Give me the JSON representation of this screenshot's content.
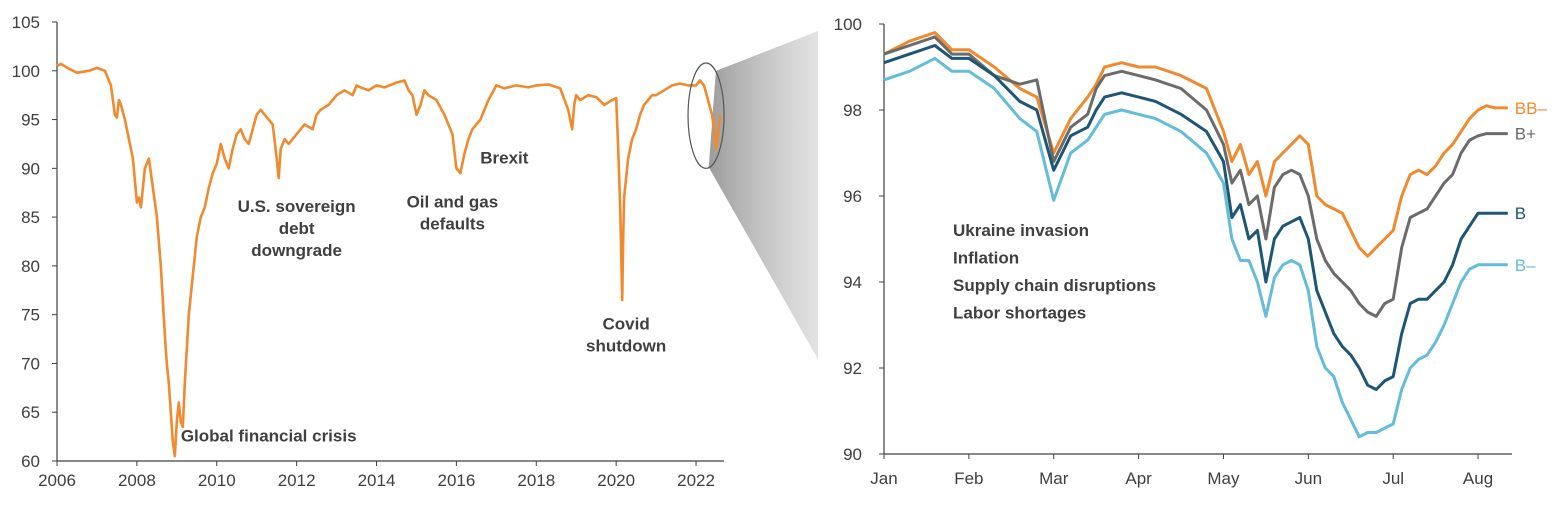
{
  "colors": {
    "orange": "#EF8A2E",
    "gray": "#6B6B6B",
    "navy": "#1E5673",
    "lightblue": "#63BCD8",
    "axis": "#404040",
    "annotation": "#404040"
  },
  "chart_data": [
    {
      "type": "line",
      "title": "",
      "xlabel": "",
      "ylabel": "",
      "xlim": [
        2006,
        2022.7
      ],
      "ylim": [
        60,
        105
      ],
      "grid": false,
      "x_ticks": [
        {
          "value": 2006,
          "label": "2006"
        },
        {
          "value": 2008,
          "label": "2008"
        },
        {
          "value": 2010,
          "label": "2010"
        },
        {
          "value": 2012,
          "label": "2012"
        },
        {
          "value": 2014,
          "label": "2014"
        },
        {
          "value": 2016,
          "label": "2016"
        },
        {
          "value": 2018,
          "label": "2018"
        },
        {
          "value": 2020,
          "label": "2020"
        },
        {
          "value": 2022,
          "label": "2022"
        }
      ],
      "y_ticks": [
        {
          "value": 60,
          "label": "60"
        },
        {
          "value": 65,
          "label": "65"
        },
        {
          "value": 70,
          "label": "70"
        },
        {
          "value": 75,
          "label": "75"
        },
        {
          "value": 80,
          "label": "80"
        },
        {
          "value": 85,
          "label": "85"
        },
        {
          "value": 90,
          "label": "90"
        },
        {
          "value": 95,
          "label": "95"
        },
        {
          "value": 100,
          "label": "100"
        },
        {
          "value": 105,
          "label": "105"
        }
      ],
      "series": [
        {
          "color": "#EF8A2E",
          "x": [
            2006.0,
            2006.1,
            2006.3,
            2006.5,
            2006.8,
            2007.0,
            2007.2,
            2007.35,
            2007.45,
            2007.5,
            2007.55,
            2007.6,
            2007.7,
            2007.8,
            2007.9,
            2008.0,
            2008.05,
            2008.1,
            2008.2,
            2008.3,
            2008.4,
            2008.5,
            2008.6,
            2008.7,
            2008.75,
            2008.8,
            2008.85,
            2008.9,
            2008.95,
            2009.0,
            2009.05,
            2009.1,
            2009.15,
            2009.2,
            2009.3,
            2009.4,
            2009.5,
            2009.6,
            2009.7,
            2009.8,
            2009.9,
            2010.0,
            2010.1,
            2010.2,
            2010.3,
            2010.4,
            2010.5,
            2010.6,
            2010.7,
            2010.8,
            2010.9,
            2011.0,
            2011.1,
            2011.2,
            2011.3,
            2011.4,
            2011.5,
            2011.55,
            2011.6,
            2011.7,
            2011.8,
            2011.9,
            2012.0,
            2012.2,
            2012.4,
            2012.5,
            2012.6,
            2012.8,
            2013.0,
            2013.2,
            2013.4,
            2013.5,
            2013.6,
            2013.8,
            2014.0,
            2014.2,
            2014.5,
            2014.7,
            2014.8,
            2014.9,
            2015.0,
            2015.1,
            2015.2,
            2015.3,
            2015.5,
            2015.7,
            2015.9,
            2016.0,
            2016.1,
            2016.2,
            2016.3,
            2016.4,
            2016.6,
            2016.8,
            2017.0,
            2017.2,
            2017.5,
            2017.8,
            2018.0,
            2018.3,
            2018.6,
            2018.8,
            2018.9,
            2018.95,
            2019.0,
            2019.1,
            2019.3,
            2019.5,
            2019.7,
            2019.9,
            2020.0,
            2020.05,
            2020.1,
            2020.15,
            2020.18,
            2020.2,
            2020.25,
            2020.3,
            2020.4,
            2020.5,
            2020.6,
            2020.7,
            2020.8,
            2020.9,
            2021.0,
            2021.2,
            2021.4,
            2021.6,
            2021.8,
            2022.0,
            2022.1,
            2022.2,
            2022.3,
            2022.4,
            2022.45,
            2022.5,
            2022.55,
            2022.6
          ],
          "y": [
            100.5,
            100.7,
            100.2,
            99.8,
            100.0,
            100.3,
            100.0,
            98.5,
            95.5,
            95.2,
            97.0,
            96.5,
            95.0,
            93.0,
            91.0,
            86.5,
            87.0,
            86.0,
            90.0,
            91.0,
            88.0,
            85.0,
            80.0,
            73.0,
            70.0,
            68.0,
            65.0,
            62.0,
            60.5,
            64.0,
            66.0,
            64.0,
            63.5,
            68.0,
            75.0,
            79.0,
            83.0,
            85.0,
            86.0,
            88.0,
            89.5,
            90.5,
            92.5,
            91.0,
            90.0,
            92.0,
            93.5,
            94.0,
            93.0,
            92.5,
            94.0,
            95.5,
            96.0,
            95.5,
            95.0,
            94.5,
            91.0,
            89.0,
            92.0,
            93.0,
            92.5,
            93.0,
            93.5,
            94.5,
            94.0,
            95.5,
            96.0,
            96.5,
            97.5,
            98.0,
            97.5,
            98.5,
            98.3,
            98.0,
            98.5,
            98.3,
            98.8,
            99.0,
            98.0,
            97.5,
            95.5,
            96.5,
            98.0,
            97.5,
            97.0,
            95.5,
            93.5,
            90.0,
            89.5,
            91.5,
            93.0,
            94.0,
            95.0,
            97.0,
            98.5,
            98.2,
            98.5,
            98.3,
            98.5,
            98.6,
            98.2,
            96.0,
            94.0,
            96.5,
            97.5,
            97.0,
            97.5,
            97.3,
            96.5,
            97.0,
            97.2,
            92.0,
            86.0,
            76.5,
            84.0,
            87.0,
            89.0,
            91.0,
            93.0,
            94.0,
            95.5,
            96.5,
            97.0,
            97.5,
            97.5,
            98.0,
            98.5,
            98.7,
            98.5,
            98.5,
            99.0,
            98.5,
            97.0,
            95.5,
            94.0,
            92.0,
            93.5,
            95.5
          ],
          "name": ""
        }
      ],
      "annotations": [
        {
          "text_lines": [
            "Global financial crisis"
          ],
          "x": 2011.3,
          "y": 62.0
        },
        {
          "text_lines": [
            "U.S. sovereign",
            "debt",
            "downgrade"
          ],
          "x": 2012.0,
          "y": 85.5
        },
        {
          "text_lines": [
            "Oil and gas",
            "defaults"
          ],
          "x": 2015.9,
          "y": 86.0
        },
        {
          "text_lines": [
            "Brexit"
          ],
          "x": 2017.2,
          "y": 90.5
        },
        {
          "text_lines": [
            "Covid",
            "shutdown"
          ],
          "x": 2020.25,
          "y": 73.5
        }
      ],
      "highlight": {
        "shape": "ellipse",
        "x_range": [
          2021.8,
          2022.7
        ],
        "y_range": [
          90.0,
          100.8
        ]
      }
    },
    {
      "type": "line",
      "title": "",
      "xlabel": "",
      "ylabel": "",
      "xlim": [
        0,
        7.4
      ],
      "ylim": [
        90,
        100
      ],
      "grid": false,
      "x_ticks": [
        {
          "value": 0,
          "label": "Jan"
        },
        {
          "value": 1,
          "label": "Feb"
        },
        {
          "value": 2,
          "label": "Mar"
        },
        {
          "value": 3,
          "label": "Apr"
        },
        {
          "value": 4,
          "label": "May"
        },
        {
          "value": 5,
          "label": "Jun"
        },
        {
          "value": 6,
          "label": "Jul"
        },
        {
          "value": 7,
          "label": "Aug"
        }
      ],
      "y_ticks": [
        {
          "value": 90,
          "label": "90"
        },
        {
          "value": 92,
          "label": "92"
        },
        {
          "value": 94,
          "label": "94"
        },
        {
          "value": 96,
          "label": "96"
        },
        {
          "value": 98,
          "label": "98"
        },
        {
          "value": 100,
          "label": "100"
        }
      ],
      "x": [
        0.0,
        0.3,
        0.6,
        0.8,
        1.0,
        1.3,
        1.6,
        1.8,
        2.0,
        2.2,
        2.4,
        2.5,
        2.6,
        2.8,
        3.0,
        3.2,
        3.5,
        3.8,
        4.0,
        4.1,
        4.2,
        4.3,
        4.4,
        4.5,
        4.6,
        4.7,
        4.8,
        4.9,
        5.0,
        5.1,
        5.2,
        5.3,
        5.4,
        5.5,
        5.6,
        5.7,
        5.8,
        5.9,
        6.0,
        6.1,
        6.2,
        6.3,
        6.4,
        6.5,
        6.6,
        6.7,
        6.8,
        6.9,
        7.0,
        7.1,
        7.2,
        7.3,
        7.35
      ],
      "series": [
        {
          "name": "BB–",
          "color": "#EF8A2E",
          "values": [
            99.3,
            99.6,
            99.8,
            99.4,
            99.4,
            99.0,
            98.5,
            98.3,
            97.0,
            97.8,
            98.3,
            98.6,
            99.0,
            99.1,
            99.0,
            99.0,
            98.8,
            98.5,
            97.5,
            96.8,
            97.2,
            96.5,
            96.8,
            96.0,
            96.8,
            97.0,
            97.2,
            97.4,
            97.2,
            96.0,
            95.8,
            95.7,
            95.6,
            95.2,
            94.8,
            94.6,
            94.8,
            95.0,
            95.2,
            96.0,
            96.5,
            96.6,
            96.5,
            96.7,
            97.0,
            97.2,
            97.5,
            97.8,
            98.0,
            98.1,
            98.05,
            98.05,
            98.05
          ]
        },
        {
          "name": "B+",
          "color": "#6B6B6B",
          "values": [
            99.3,
            99.5,
            99.7,
            99.3,
            99.3,
            98.8,
            98.6,
            98.7,
            96.8,
            97.6,
            97.9,
            98.5,
            98.8,
            98.9,
            98.8,
            98.7,
            98.5,
            98.0,
            97.2,
            96.3,
            96.6,
            95.8,
            96.0,
            95.0,
            96.2,
            96.5,
            96.6,
            96.5,
            96.0,
            95.0,
            94.5,
            94.2,
            94.0,
            93.8,
            93.5,
            93.3,
            93.2,
            93.5,
            93.6,
            94.8,
            95.5,
            95.6,
            95.7,
            96.0,
            96.3,
            96.5,
            97.0,
            97.3,
            97.4,
            97.45,
            97.45,
            97.45,
            97.45
          ]
        },
        {
          "name": "B",
          "color": "#1E5673",
          "values": [
            99.1,
            99.3,
            99.5,
            99.2,
            99.2,
            98.8,
            98.2,
            98.0,
            96.6,
            97.4,
            97.6,
            98.0,
            98.3,
            98.4,
            98.3,
            98.2,
            97.9,
            97.5,
            96.8,
            95.5,
            95.8,
            95.0,
            95.2,
            94.0,
            95.0,
            95.3,
            95.4,
            95.5,
            95.0,
            93.8,
            93.3,
            92.8,
            92.5,
            92.3,
            92.0,
            91.6,
            91.5,
            91.7,
            91.8,
            92.8,
            93.5,
            93.6,
            93.6,
            93.8,
            94.0,
            94.4,
            95.0,
            95.3,
            95.6,
            95.6,
            95.6,
            95.6,
            95.6
          ]
        },
        {
          "name": "B–",
          "color": "#63BCD8",
          "values": [
            98.7,
            98.9,
            99.2,
            98.9,
            98.9,
            98.5,
            97.8,
            97.5,
            95.9,
            97.0,
            97.3,
            97.6,
            97.9,
            98.0,
            97.9,
            97.8,
            97.5,
            97.0,
            96.3,
            95.0,
            94.5,
            94.5,
            94.0,
            93.2,
            94.1,
            94.4,
            94.5,
            94.4,
            93.8,
            92.5,
            92.0,
            91.8,
            91.2,
            90.8,
            90.4,
            90.5,
            90.5,
            90.6,
            90.7,
            91.5,
            92.0,
            92.2,
            92.3,
            92.6,
            93.0,
            93.5,
            94.0,
            94.3,
            94.4,
            94.4,
            94.4,
            94.4,
            94.4
          ]
        }
      ],
      "annotations": [
        {
          "text_lines": [
            "Ukraine invasion",
            "Inflation",
            "Supply chain disruptions",
            "Labor shortages"
          ]
        }
      ]
    }
  ]
}
